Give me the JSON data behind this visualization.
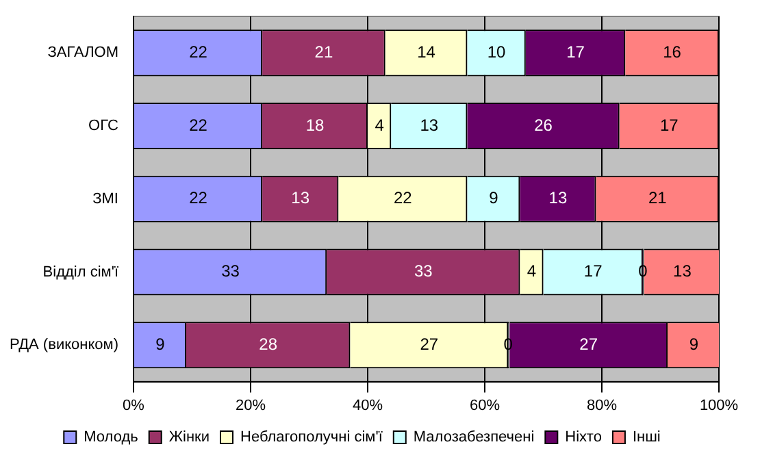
{
  "chart_data": {
    "type": "bar",
    "orientation": "horizontal",
    "stacked": true,
    "categories": [
      "ЗАГАЛОМ",
      "ОГС",
      "ЗМІ",
      "Відділ сім'ї",
      "РДА (виконком)"
    ],
    "series": [
      {
        "name": "Молодь",
        "color": "#9999ff",
        "values": [
          22,
          22,
          22,
          33,
          9
        ]
      },
      {
        "name": "Жінки",
        "color": "#993366",
        "values": [
          21,
          18,
          13,
          33,
          28
        ]
      },
      {
        "name": "Неблагополучні сім'ї",
        "color": "#ffffcc",
        "values": [
          14,
          4,
          22,
          4,
          27
        ]
      },
      {
        "name": "Малозабезпечені",
        "color": "#ccffff",
        "values": [
          10,
          13,
          9,
          17,
          0
        ]
      },
      {
        "name": "Ніхто",
        "color": "#660066",
        "values": [
          17,
          26,
          13,
          0,
          27
        ]
      },
      {
        "name": "Інші",
        "color": "#ff8080",
        "values": [
          16,
          17,
          21,
          13,
          9
        ]
      }
    ],
    "xlim": [
      0,
      100
    ],
    "xticks": [
      {
        "value": 0,
        "label": "0%"
      },
      {
        "value": 20,
        "label": "20%"
      },
      {
        "value": 40,
        "label": "40%"
      },
      {
        "value": 60,
        "label": "60%"
      },
      {
        "value": 80,
        "label": "80%"
      },
      {
        "value": 100,
        "label": "100%"
      }
    ],
    "grid": "x",
    "legend": "bottom",
    "data_labels": true
  }
}
